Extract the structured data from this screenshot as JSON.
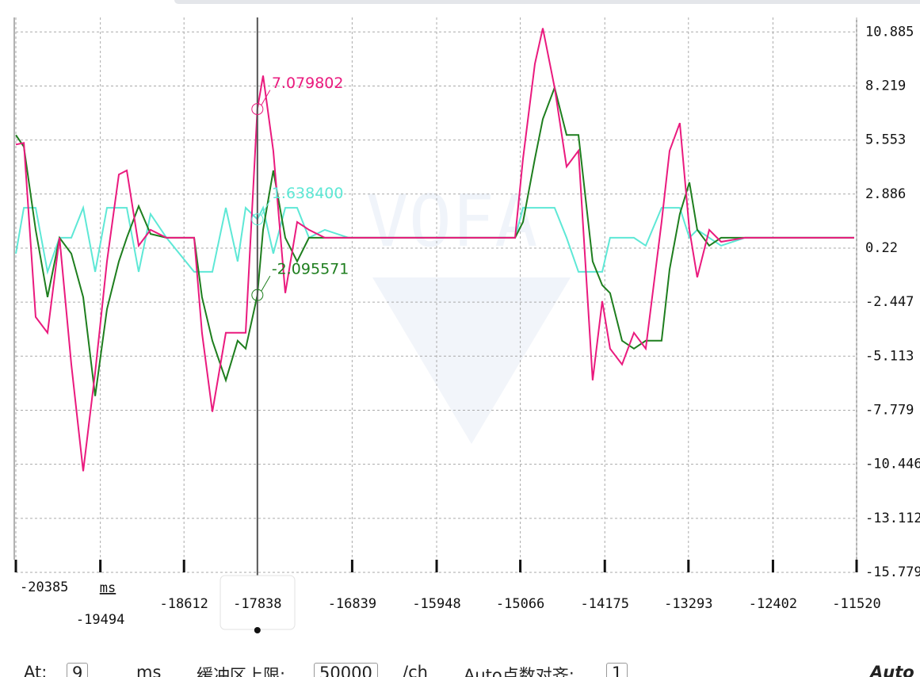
{
  "chart_data": {
    "type": "line",
    "x_unit": "ms",
    "x": [
      -20385,
      -20301,
      -20176,
      -20051,
      -19925,
      -19800,
      -19675,
      -19549,
      -19424,
      -19299,
      -19215,
      -19090,
      -18965,
      -18797,
      -18505,
      -18422,
      -18313,
      -18171,
      -18046,
      -17962,
      -17838,
      -17778,
      -17670,
      -17544,
      -17419,
      -17294,
      -17127,
      -16876,
      -16375,
      -15539,
      -15121,
      -15038,
      -14912,
      -14829,
      -14704,
      -14578,
      -14453,
      -14303,
      -14202,
      -14119,
      -13993,
      -13868,
      -13743,
      -13576,
      -13492,
      -13384,
      -13283,
      -13200,
      -13074,
      -12949,
      -12698,
      -12197,
      -11545
    ],
    "series": [
      {
        "color": "#ea1a7e",
        "values": [
          5.33,
          5.41,
          -3.18,
          -3.96,
          0.73,
          -5.52,
          -10.79,
          -5.91,
          -0.44,
          3.85,
          4.05,
          0.34,
          1.12,
          0.73,
          0.73,
          -3.96,
          -7.86,
          -3.96,
          -3.96,
          -3.96,
          7.08,
          8.73,
          5.02,
          -2.0,
          1.51,
          1.12,
          0.73,
          0.73,
          0.73,
          0.73,
          0.73,
          4.63,
          9.31,
          11.07,
          8.14,
          4.24,
          5.02,
          -6.3,
          -2.4,
          -4.74,
          -5.52,
          -3.96,
          -4.74,
          1.51,
          5.02,
          6.39,
          1.12,
          -1.22,
          1.12,
          0.53,
          0.73,
          0.73,
          0.73
        ]
      },
      {
        "color": "#1e7e1e",
        "values": [
          5.8,
          5.22,
          1.12,
          -2.2,
          0.73,
          -0.05,
          -2.2,
          -7.08,
          -2.79,
          -0.44,
          0.73,
          2.29,
          0.92,
          0.73,
          0.73,
          -2.2,
          -4.35,
          -6.3,
          -4.35,
          -4.74,
          -2.1,
          1.12,
          4.05,
          0.73,
          -0.44,
          0.73,
          0.73,
          0.73,
          0.73,
          0.73,
          0.73,
          1.51,
          4.63,
          6.58,
          8.14,
          5.8,
          5.8,
          -0.44,
          -1.61,
          -2.0,
          -4.35,
          -4.74,
          -4.35,
          -4.35,
          -0.83,
          1.9,
          3.46,
          1.12,
          0.34,
          0.73,
          0.73,
          0.73,
          0.73
        ]
      },
      {
        "color": "#5ee8d6",
        "values": [
          -0.05,
          2.21,
          2.21,
          -0.95,
          0.73,
          0.73,
          2.21,
          -0.95,
          2.21,
          2.21,
          2.21,
          -0.95,
          1.9,
          0.73,
          -0.95,
          -0.95,
          -0.95,
          2.21,
          -0.44,
          2.21,
          1.64,
          2.21,
          -0.05,
          2.21,
          2.21,
          0.73,
          1.12,
          0.73,
          0.73,
          0.73,
          0.73,
          2.21,
          2.21,
          2.21,
          2.21,
          0.73,
          -0.95,
          -0.95,
          -0.95,
          0.73,
          0.73,
          0.73,
          0.34,
          2.21,
          2.21,
          2.21,
          0.73,
          1.12,
          0.73,
          0.34,
          0.73,
          0.73,
          0.73
        ]
      }
    ],
    "xlim": [
      -20385,
      -11520
    ],
    "xticks": [
      -20385,
      -19494,
      -18612,
      -16839,
      -15948,
      -15066,
      -14175,
      -13293,
      -12402,
      -11520
    ],
    "ylim": [
      -15.779,
      11.6
    ],
    "yticks": [
      10.885,
      8.219,
      5.553,
      2.886,
      0.22,
      -2.447,
      -5.113,
      -7.779,
      -10.446,
      -13.112,
      -15.779
    ],
    "grid": true,
    "cursor": {
      "x": -17838,
      "readouts": [
        {
          "value": 7.079802,
          "label": "7.079802",
          "color": "#ea1a7e"
        },
        {
          "value": 1.6384,
          "label": "1.638400",
          "color": "#5ee8d6"
        },
        {
          "value": -2.095571,
          "label": "-2.095571",
          "color": "#1e7e1e"
        }
      ]
    }
  },
  "controls": {
    "at_label": "At:",
    "at_value": 9,
    "at_unit": "ms",
    "buffer_label": "缓冲区上限:",
    "buffer_value": 50000,
    "buffer_unit": "/ch",
    "auto_label": "Auto点数对齐:",
    "auto_value": 1,
    "auto_button": "Auto"
  }
}
